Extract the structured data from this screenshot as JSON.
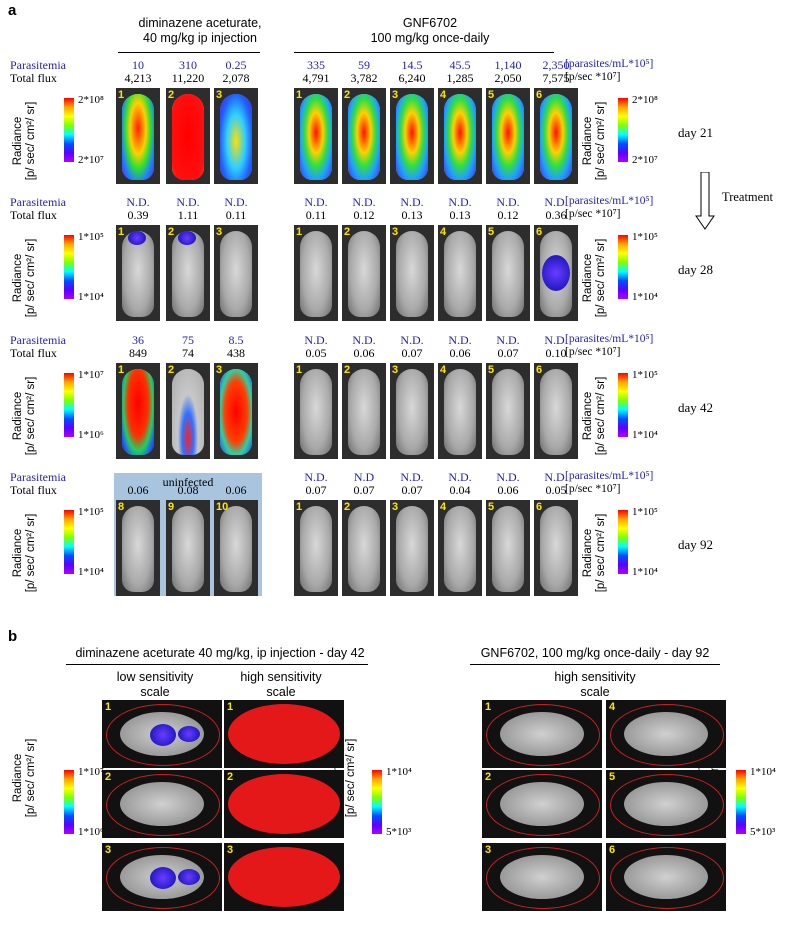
{
  "panel_a": {
    "letter": "a",
    "header_left": [
      "diminazene aceturate,",
      "40 mg/kg ip injection"
    ],
    "header_right": [
      "GNF6702",
      "100 mg/kg once-daily"
    ],
    "row_label_parasitemia": "Parasitemia",
    "row_label_flux": "Total flux",
    "unit_parasitemia": "[parasites/mL*10⁵]",
    "unit_flux": "[p/sec *10⁷]",
    "radiance_label": [
      "Radiance",
      "[p/ sec/ cm²/ sr]"
    ],
    "treatment_label": "Treatment",
    "uninfected_label": "uninfected",
    "rows": [
      {
        "day": "day  21",
        "scale_top": "2*10⁸",
        "scale_bottom": "2*10⁷",
        "left_scale_top": "2*10⁸",
        "left_scale_bottom": "2*10⁷",
        "left_par": [
          "10",
          "310",
          "0.25"
        ],
        "left_flux": [
          "4,213",
          "11,220",
          "2,078"
        ],
        "right_par": [
          "335",
          "59",
          "14.5",
          "45.5",
          "1,140",
          "2,350"
        ],
        "right_flux": [
          "4,791",
          "3,782",
          "6,240",
          "1,285",
          "2,050",
          "7,575"
        ],
        "left_nums": [
          "1",
          "2",
          "3"
        ],
        "right_nums": [
          "1",
          "2",
          "3",
          "4",
          "5",
          "6"
        ]
      },
      {
        "day": "day  28",
        "scale_top": "1*10⁵",
        "scale_bottom": "1*10⁴",
        "left_scale_top": "1*10⁵",
        "left_scale_bottom": "1*10⁴",
        "left_par": [
          "N.D.",
          "N.D.",
          "N.D."
        ],
        "left_flux": [
          "0.39",
          "1.11",
          "0.11"
        ],
        "right_par": [
          "N.D.",
          "N.D.",
          "N.D.",
          "N.D.",
          "N.D.",
          "N.D."
        ],
        "right_flux": [
          "0.11",
          "0.12",
          "0.13",
          "0.13",
          "0.12",
          "0.36"
        ],
        "left_nums": [
          "1",
          "2",
          "3"
        ],
        "right_nums": [
          "1",
          "2",
          "3",
          "4",
          "5",
          "6"
        ]
      },
      {
        "day": "day  42",
        "scale_top": "1*10⁵",
        "scale_bottom": "1*10⁴",
        "left_scale_top": "1*10⁷",
        "left_scale_bottom": "1*10⁶",
        "left_par": [
          "36",
          "75",
          "8.5"
        ],
        "left_flux": [
          "849",
          "74",
          "438"
        ],
        "right_par": [
          "N.D.",
          "N.D.",
          "N.D.",
          "N.D.",
          "N.D.",
          "N.D."
        ],
        "right_flux": [
          "0.05",
          "0.06",
          "0.07",
          "0.06",
          "0.07",
          "0.10"
        ],
        "left_nums": [
          "1",
          "2",
          "3"
        ],
        "right_nums": [
          "1",
          "2",
          "3",
          "4",
          "5",
          "6"
        ]
      },
      {
        "day": "day  92",
        "scale_top": "1*10⁵",
        "scale_bottom": "1*10⁴",
        "left_scale_top": "1*10⁵",
        "left_scale_bottom": "1*10⁴",
        "left_par": [
          "",
          "",
          ""
        ],
        "left_flux": [
          "0.06",
          "0.08",
          "0.06"
        ],
        "right_par": [
          "N.D.",
          "N.D",
          "N.D.",
          "N.D.",
          "N.D.",
          "N.D."
        ],
        "right_flux": [
          "0.07",
          "0.07",
          "0.07",
          "0.04",
          "0.06",
          "0.05"
        ],
        "left_nums": [
          "8",
          "9",
          "10"
        ],
        "right_nums": [
          "1",
          "2",
          "3",
          "4",
          "5",
          "6"
        ]
      }
    ]
  },
  "panel_b": {
    "letter": "b",
    "header_left": "diminazene aceturate 40 mg/kg, ip injection - day 42",
    "header_right": "GNF6702, 100 mg/kg once-daily - day 92",
    "col_low": [
      "low sensitivity",
      "scale"
    ],
    "col_high": [
      "high sensitivity",
      "scale"
    ],
    "col_right": [
      "high sensitivity",
      "scale"
    ],
    "radiance_label": [
      "Radiance",
      "[p/ sec/ cm²/ sr]"
    ],
    "scale1_top": "1*10⁷",
    "scale1_bottom": "1*10⁶",
    "scale2_top": "1*10⁴",
    "scale2_bottom": "5*10³",
    "scale3_top": "1*10⁴",
    "scale3_bottom": "5*10³",
    "left_nums": [
      "1",
      "2",
      "3"
    ],
    "right_nums_a": [
      "1",
      "2",
      "3"
    ],
    "right_nums_b": [
      "4",
      "5",
      "6"
    ]
  },
  "colors": {
    "parasitemia_blue": "#1f1fbf",
    "uninfected_box": "#a8c4de",
    "scale_top": "#ff0000",
    "scale_bottom": "#b000ff"
  }
}
